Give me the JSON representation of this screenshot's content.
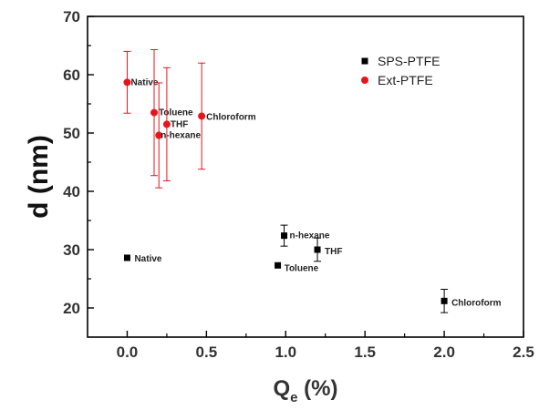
{
  "chart_data": {
    "type": "scatter",
    "xlabel_main": "Q",
    "xlabel_sub": "e",
    "xlabel_unit": " (%)",
    "ylabel": "d (nm)",
    "xlim": [
      -0.25,
      2.5
    ],
    "ylim": [
      15,
      70
    ],
    "xticks": [
      "0.0",
      "0.5",
      "1.0",
      "1.5",
      "2.0",
      "2.5"
    ],
    "yticks": [
      "20",
      "30",
      "40",
      "50",
      "60",
      "70"
    ],
    "legend_position": "top-right",
    "series": [
      {
        "name": "SPS-PTFE",
        "color": "#000000",
        "marker": "square",
        "points": [
          {
            "label": "Native",
            "x": 0.0,
            "y": 28.6,
            "err": 0
          },
          {
            "label": "Toluene",
            "x": 0.95,
            "y": 27.3,
            "err": 0
          },
          {
            "label": "n-hexane",
            "x": 0.99,
            "y": 32.4,
            "err": 1.8
          },
          {
            "label": "THF",
            "x": 1.2,
            "y": 30.0,
            "err": 2.0
          },
          {
            "label": "Chloroform",
            "x": 2.0,
            "y": 21.2,
            "err": 2.0
          }
        ]
      },
      {
        "name": "Ext-PTFE",
        "color": "#e8141b",
        "marker": "circle",
        "points": [
          {
            "label": "Native",
            "x": 0.0,
            "y": 58.7,
            "err": 5.3
          },
          {
            "label": "Toluene",
            "x": 0.17,
            "y": 53.5,
            "err": 10.8
          },
          {
            "label": "n-hexane",
            "x": 0.2,
            "y": 49.6,
            "err": 9.0
          },
          {
            "label": "THF",
            "x": 0.25,
            "y": 51.5,
            "err": 9.7
          },
          {
            "label": "Chloroform",
            "x": 0.47,
            "y": 52.9,
            "err": 9.1
          }
        ]
      }
    ]
  }
}
